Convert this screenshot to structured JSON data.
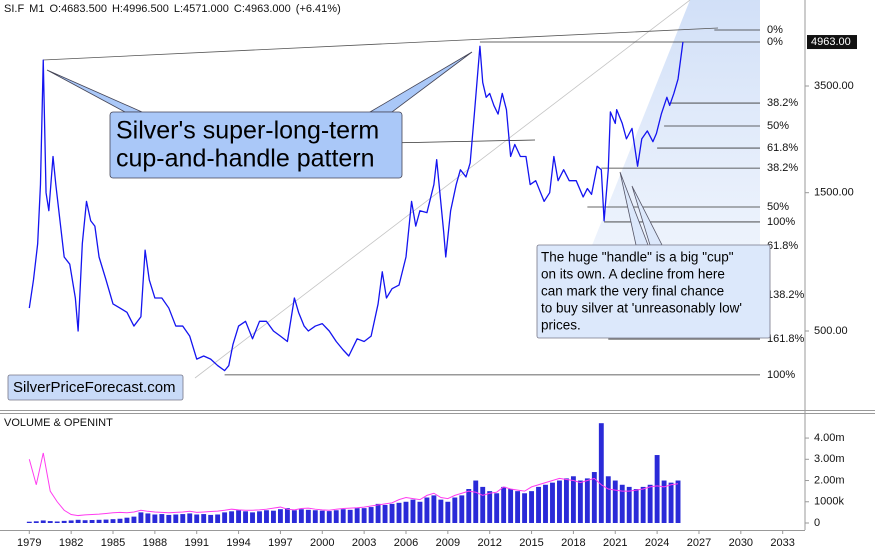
{
  "chart_data": [
    {
      "type": "line",
      "header": [
        "SI.F",
        "M1",
        "O:4683.500",
        "H:4996.500",
        "L:4571.000",
        "C:4963.000",
        "(+6.41%)"
      ],
      "log_scale": true,
      "xlim": [
        1976.9,
        2034.6
      ],
      "ylim": [
        267,
        6930
      ],
      "yticks": [
        {
          "value": 500,
          "label": "500.00"
        },
        {
          "value": 1500,
          "label": "1500.00"
        },
        {
          "value": 3500,
          "label": "3500.00"
        }
      ],
      "last_price": {
        "value": 4963,
        "label": "4963.00"
      },
      "series": [
        {
          "color": "#1414f0",
          "x": [
            1979.0,
            1979.3,
            1979.6,
            1979.8,
            1980.0,
            1980.2,
            1980.4,
            1980.7,
            1980.9,
            1981.2,
            1981.5,
            1981.9,
            1982.3,
            1982.5,
            1982.8,
            1983.1,
            1983.4,
            1983.7,
            1984.0,
            1984.5,
            1985.0,
            1985.5,
            1986.0,
            1986.5,
            1987.0,
            1987.3,
            1987.6,
            1988.0,
            1988.5,
            1989.0,
            1989.5,
            1990.0,
            1990.5,
            1991.0,
            1991.5,
            1992.0,
            1992.5,
            1993.0,
            1993.3,
            1993.6,
            1994.0,
            1994.5,
            1995.0,
            1995.5,
            1996.0,
            1996.5,
            1997.0,
            1997.5,
            1998.0,
            1998.3,
            1998.7,
            1999.0,
            1999.5,
            2000.0,
            2000.5,
            2001.0,
            2001.5,
            2001.9,
            2002.5,
            2003.0,
            2003.5,
            2004.0,
            2004.3,
            2004.6,
            2005.0,
            2005.5,
            2006.0,
            2006.4,
            2006.7,
            2007.0,
            2007.5,
            2008.0,
            2008.2,
            2008.7,
            2008.85,
            2009.2,
            2009.6,
            2009.9,
            2010.3,
            2010.6,
            2010.9,
            2011.3,
            2011.5,
            2011.75,
            2012.0,
            2012.3,
            2012.6,
            2012.9,
            2013.2,
            2013.5,
            2013.8,
            2014.2,
            2014.6,
            2014.9,
            2015.3,
            2015.9,
            2016.3,
            2016.6,
            2016.9,
            2017.3,
            2017.7,
            2018.2,
            2018.7,
            2019.0,
            2019.3,
            2019.7,
            2020.0,
            2020.2,
            2020.5,
            2020.65,
            2021.0,
            2021.1,
            2021.5,
            2021.8,
            2022.2,
            2022.6,
            2022.9,
            2023.3,
            2023.7,
            2023.95,
            2024.3,
            2024.7,
            2024.9,
            2025.2,
            2025.5,
            2025.85
          ],
          "values": [
            600,
            750,
            1000,
            1600,
            4300,
            1500,
            1300,
            2000,
            1600,
            1200,
            900,
            850,
            650,
            500,
            1000,
            1400,
            1200,
            1150,
            900,
            750,
            620,
            600,
            580,
            520,
            560,
            950,
            750,
            650,
            650,
            600,
            520,
            520,
            480,
            400,
            410,
            400,
            380,
            365,
            380,
            450,
            520,
            540,
            470,
            540,
            540,
            500,
            480,
            460,
            650,
            580,
            520,
            500,
            520,
            530,
            500,
            460,
            430,
            410,
            470,
            460,
            480,
            620,
            800,
            650,
            700,
            720,
            900,
            1400,
            1150,
            1300,
            1280,
            1600,
            1950,
            1100,
            900,
            1300,
            1600,
            1800,
            1700,
            1900,
            2800,
            4800,
            3600,
            3200,
            3300,
            3000,
            2800,
            3300,
            2900,
            2000,
            2200,
            2000,
            2000,
            1600,
            1650,
            1400,
            1500,
            2000,
            1650,
            1800,
            1650,
            1650,
            1450,
            1550,
            1480,
            1850,
            1800,
            1200,
            1800,
            2850,
            2600,
            2900,
            2600,
            2300,
            2500,
            1850,
            2300,
            2450,
            2250,
            2400,
            2800,
            3200,
            3000,
            3300,
            3700,
            4963
          ]
        }
      ],
      "levels": [
        {
          "label": "0%",
          "value": 5460,
          "start": 2028.1
        },
        {
          "label": "0%",
          "value": 4963,
          "start": 2011.3
        },
        {
          "label": "38.2%",
          "value": 3057,
          "start": 2024.9
        },
        {
          "label": "50%",
          "value": 2548,
          "start": 2024.5
        },
        {
          "label": "61.8%",
          "value": 2138,
          "start": 2024.0
        },
        {
          "label": "38.2%",
          "value": 1823,
          "start": 2020.0
        },
        {
          "label": "50%",
          "value": 1339,
          "start": 2019.0
        },
        {
          "label": "100%",
          "value": 1189,
          "start": 2020.2
        },
        {
          "label": "61.8%",
          "value": 982,
          "start": 2018.0
        },
        {
          "label": "138.2%",
          "value": 665,
          "start": 2020.0
        },
        {
          "label": "161.8%",
          "value": 469,
          "start": 2020.5
        },
        {
          "label": "100%",
          "value": 353,
          "start": 1993.0
        }
      ],
      "callout_main": [
        "Silver's super-long-term",
        "cup-and-handle pattern"
      ],
      "callout_handle": [
        "The huge \"handle\" is a big \"cup\"",
        "on its own. A decline from here",
        "can mark the very final chance",
        "to buy silver at 'unreasonably low'",
        "prices."
      ],
      "watermark": "SilverPriceForecast.com"
    },
    {
      "type": "bar",
      "title": "VOLUME & OPENINT",
      "xlim": [
        1976.9,
        2034.6
      ],
      "xticks": [
        1979,
        1982,
        1985,
        1988,
        1991,
        1994,
        1997,
        2000,
        2003,
        2006,
        2009,
        2012,
        2015,
        2018,
        2021,
        2024,
        2027,
        2030,
        2033
      ],
      "ylim": [
        -330000,
        5180000
      ],
      "yticks": [
        0,
        {
          "value": 1000000,
          "label": "1000k"
        },
        {
          "value": 2000000,
          "label": "2.00m"
        },
        {
          "value": 3000000,
          "label": "3.00m"
        },
        {
          "value": 4000000,
          "label": "4.00m"
        }
      ],
      "x": [
        1979,
        1979.5,
        1980,
        1980.5,
        1981,
        1981.5,
        1982,
        1982.5,
        1983,
        1983.5,
        1984,
        1984.5,
        1985,
        1985.5,
        1986,
        1986.5,
        1987,
        1987.5,
        1988,
        1988.5,
        1989,
        1989.5,
        1990,
        1990.5,
        1991,
        1991.5,
        1992,
        1992.5,
        1993,
        1993.5,
        1994,
        1994.5,
        1995,
        1995.5,
        1996,
        1996.5,
        1997,
        1997.5,
        1998,
        1998.5,
        1999,
        1999.5,
        2000,
        2000.5,
        2001,
        2001.5,
        2002,
        2002.5,
        2003,
        2003.5,
        2004,
        2004.5,
        2005,
        2005.5,
        2006,
        2006.5,
        2007,
        2007.5,
        2008,
        2008.5,
        2009,
        2009.5,
        2010,
        2010.5,
        2011,
        2011.5,
        2012,
        2012.5,
        2013,
        2013.5,
        2014,
        2014.5,
        2015,
        2015.5,
        2016,
        2016.5,
        2017,
        2017.5,
        2018,
        2018.5,
        2019,
        2019.5,
        2020,
        2020.5,
        2021,
        2021.5,
        2022,
        2022.5,
        2023,
        2023.5,
        2024,
        2024.5,
        2025,
        2025.5
      ],
      "series": [
        {
          "type": "bar",
          "color": "#2a2ad8",
          "values": [
            60000,
            80000,
            120000,
            90000,
            70000,
            100000,
            120000,
            150000,
            130000,
            140000,
            150000,
            160000,
            180000,
            200000,
            250000,
            300000,
            500000,
            450000,
            400000,
            420000,
            380000,
            400000,
            420000,
            450000,
            400000,
            420000,
            380000,
            400000,
            500000,
            550000,
            600000,
            550000,
            500000,
            550000,
            600000,
            580000,
            650000,
            700000,
            600000,
            650000,
            620000,
            600000,
            580000,
            560000,
            600000,
            650000,
            620000,
            700000,
            700000,
            750000,
            900000,
            850000,
            900000,
            950000,
            1000000,
            1100000,
            1000000,
            1200000,
            1300000,
            1100000,
            1000000,
            1200000,
            1300000,
            1600000,
            2000000,
            1700000,
            1500000,
            1400000,
            1700000,
            1600000,
            1500000,
            1400000,
            1500000,
            1700000,
            1800000,
            1900000,
            2000000,
            2100000,
            2200000,
            2000000,
            2100000,
            2400000,
            4700000,
            2200000,
            2000000,
            1800000,
            1700000,
            1600000,
            1700000,
            1800000,
            3200000,
            2000000,
            1900000,
            2000000
          ]
        },
        {
          "type": "line",
          "color": "#ff3cf0",
          "values": [
            3000000,
            1800000,
            3300000,
            1500000,
            1000000,
            600000,
            400000,
            350000,
            380000,
            400000,
            420000,
            450000,
            480000,
            500000,
            480000,
            520000,
            600000,
            550000,
            520000,
            500000,
            480000,
            500000,
            520000,
            550000,
            500000,
            520000,
            540000,
            560000,
            600000,
            650000,
            620000,
            600000,
            600000,
            620000,
            650000,
            700000,
            750000,
            650000,
            620000,
            680000,
            700000,
            650000,
            620000,
            600000,
            650000,
            680000,
            700000,
            720000,
            750000,
            800000,
            850000,
            900000,
            950000,
            1100000,
            1200000,
            1150000,
            1100000,
            1300000,
            1400000,
            1200000,
            1150000,
            1300000,
            1400000,
            1500000,
            1450000,
            1300000,
            1400000,
            1450000,
            1700000,
            1600000,
            1550000,
            1500000,
            1700000,
            1800000,
            1900000,
            2000000,
            2100000,
            2050000,
            2000000,
            1900000,
            2000000,
            2100000,
            1800000,
            1600000,
            1550000,
            1500000,
            1500000,
            1550000,
            1600000,
            1700000,
            1750000,
            1700000,
            1800000,
            1850000
          ]
        }
      ]
    }
  ]
}
